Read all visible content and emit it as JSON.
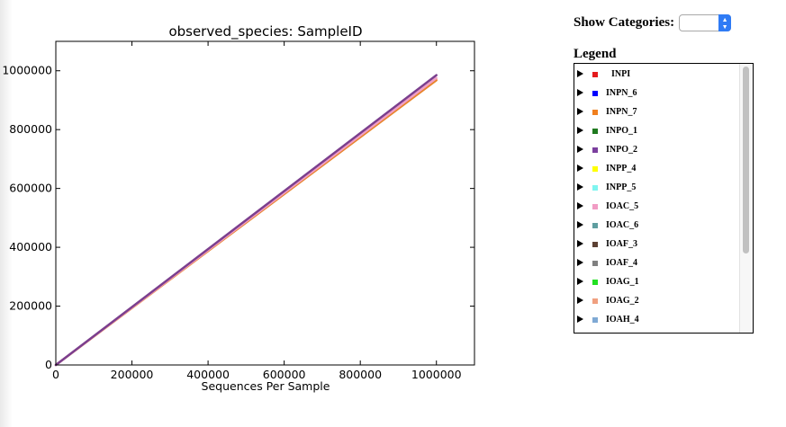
{
  "chart_data": {
    "type": "line",
    "title": "observed_species: SampleID",
    "xlabel": "Sequences Per Sample",
    "ylabel": "",
    "xlim": [
      0,
      1100000
    ],
    "ylim": [
      0,
      1100000
    ],
    "xticks": [
      0,
      200000,
      400000,
      600000,
      800000,
      1000000
    ],
    "yticks": [
      0,
      200000,
      400000,
      600000,
      800000,
      1000000
    ],
    "xtick_labels": [
      "0",
      "200000",
      "400000",
      "600000",
      "800000",
      "1000000"
    ],
    "ytick_labels": [
      "0",
      "200000",
      "400000",
      "600000",
      "800000",
      "1000000"
    ],
    "grid": false,
    "series": [
      {
        "name": "INPN_7",
        "color": "#e8852a",
        "x": [
          0,
          1000000
        ],
        "y": [
          0,
          968000
        ]
      },
      {
        "name": "IOAC_5",
        "color": "#f09ec5",
        "x": [
          0,
          1000000
        ],
        "y": [
          0,
          975000
        ]
      },
      {
        "name": "INPO_2",
        "color": "#7b3f8e",
        "x": [
          0,
          1000000
        ],
        "y": [
          0,
          985000
        ]
      }
    ]
  },
  "controls": {
    "show_categories_label": "Show Categories:",
    "selected_category": ""
  },
  "legend": {
    "title": "Legend",
    "items": [
      {
        "label": "INPI",
        "color": "#e41a1c"
      },
      {
        "label": "INPN_6",
        "color": "#0000ff"
      },
      {
        "label": "INPN_7",
        "color": "#f07f1e"
      },
      {
        "label": "INPO_1",
        "color": "#1f7a1f"
      },
      {
        "label": "INPO_2",
        "color": "#7b3f9e"
      },
      {
        "label": "INPP_4",
        "color": "#ffff00"
      },
      {
        "label": "INPP_5",
        "color": "#7ff5f0"
      },
      {
        "label": "IOAC_5",
        "color": "#f19cc4"
      },
      {
        "label": "IOAC_6",
        "color": "#5f9ea0"
      },
      {
        "label": "IOAF_3",
        "color": "#5c4033"
      },
      {
        "label": "IOAF_4",
        "color": "#808080"
      },
      {
        "label": "IOAG_1",
        "color": "#22e022"
      },
      {
        "label": "IOAG_2",
        "color": "#f0a080"
      },
      {
        "label": "IOAH_4",
        "color": "#7fa9d4"
      }
    ]
  }
}
